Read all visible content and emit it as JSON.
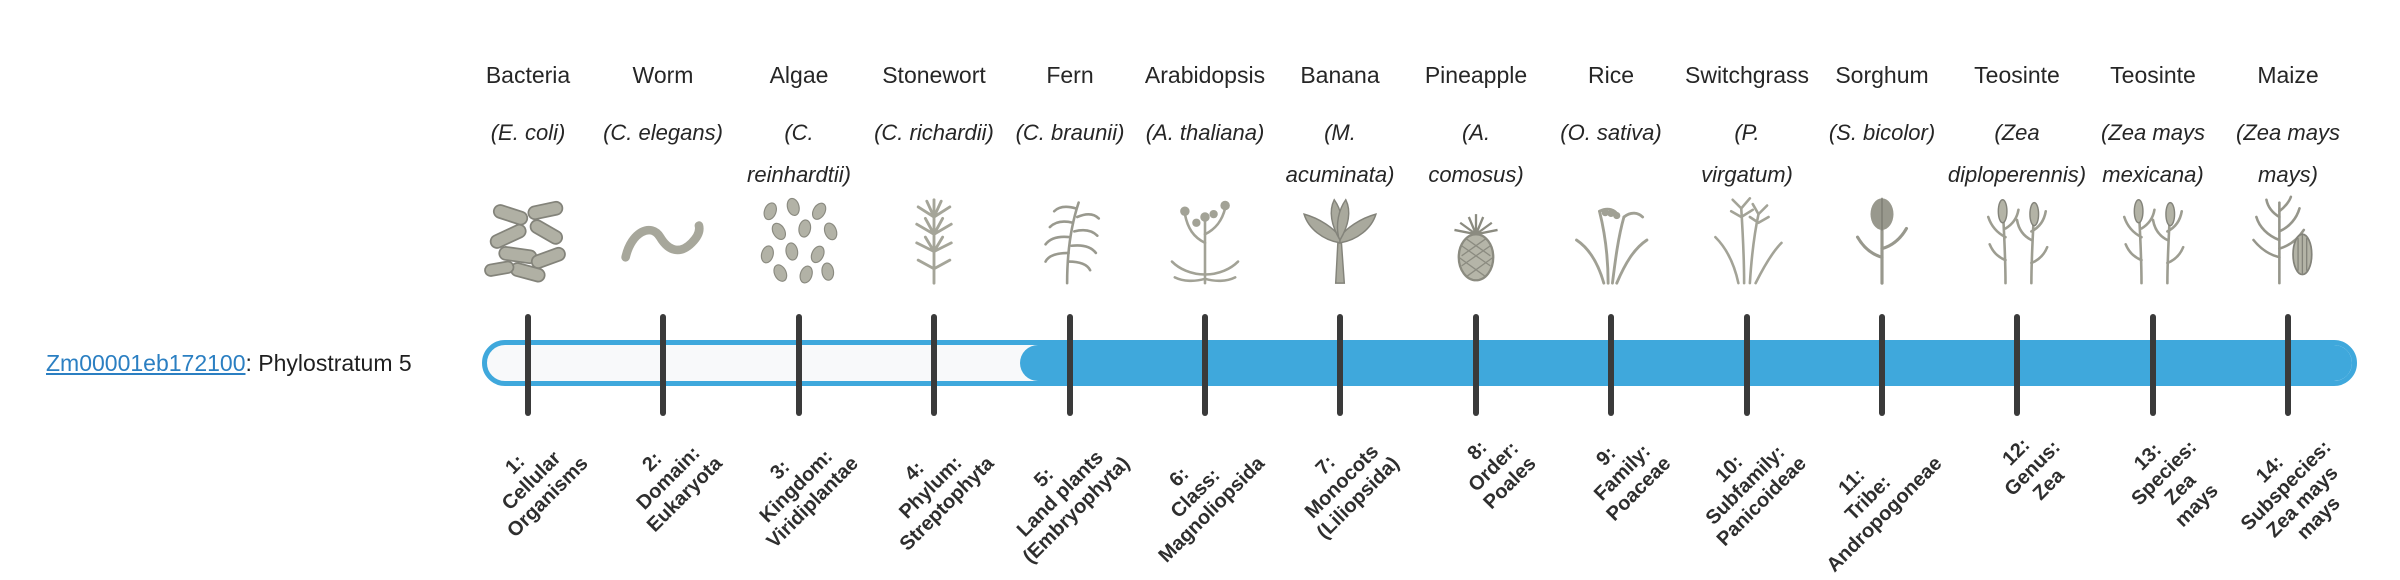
{
  "gene": {
    "id": "Zm00001eb172100",
    "suffix": ": Phylostratum 5",
    "phylostratum": 5
  },
  "colors": {
    "bar": "#3FA8DC",
    "bar_track": "#F8F9FA",
    "tick": "#3A3A3A",
    "link": "#2B7FC2",
    "text": "#262626"
  },
  "taxa": [
    {
      "common": "Bacteria",
      "sci": "(E. coli)",
      "icon": "bacteria-icon",
      "stratum_lines": [
        "1:",
        "Cellular",
        "Organisms"
      ]
    },
    {
      "common": "Worm",
      "sci": "(C. elegans)",
      "icon": "worm-icon",
      "stratum_lines": [
        "2:",
        "Domain:",
        "Eukaryota"
      ]
    },
    {
      "common": "Algae",
      "sci": "(C.\nreinhardtii)",
      "icon": "algae-icon",
      "stratum_lines": [
        "3:",
        "Kingdom:",
        "Viridiplantae"
      ]
    },
    {
      "common": "Stonewort",
      "sci": "(C. richardii)",
      "icon": "stonewort-icon",
      "stratum_lines": [
        "4:",
        "Phylum:",
        "Streptophyta"
      ]
    },
    {
      "common": "Fern",
      "sci": "(C. braunii)",
      "icon": "fern-icon",
      "stratum_lines": [
        "5:",
        "Land plants",
        "(Embryophyta)"
      ]
    },
    {
      "common": "Arabidopsis",
      "sci": "(A. thaliana)",
      "icon": "arabidopsis-icon",
      "stratum_lines": [
        "6:",
        "Class:",
        "Magnoliopsida"
      ]
    },
    {
      "common": "Banana",
      "sci": "(M.\nacuminata)",
      "icon": "banana-icon",
      "stratum_lines": [
        "7:",
        "Monocots",
        "(Liliopsida)"
      ]
    },
    {
      "common": "Pineapple",
      "sci": "(A.\ncomosus)",
      "icon": "pineapple-icon",
      "stratum_lines": [
        "8:",
        "Order:",
        "Poales"
      ]
    },
    {
      "common": "Rice",
      "sci": "(O. sativa)",
      "icon": "rice-icon",
      "stratum_lines": [
        "9:",
        "Family:",
        "Poaceae"
      ]
    },
    {
      "common": "Switchgrass",
      "sci": "(P.\nvirgatum)",
      "icon": "switchgrass-icon",
      "stratum_lines": [
        "10:",
        "Subfamily:",
        "Panicoideae"
      ]
    },
    {
      "common": "Sorghum",
      "sci": "(S. bicolor)",
      "icon": "sorghum-icon",
      "stratum_lines": [
        "11:",
        "Tribe:",
        "Andropogoneae"
      ]
    },
    {
      "common": "Teosinte",
      "sci": "(Zea\ndiploperennis)",
      "icon": "teosinte-icon",
      "stratum_lines": [
        "12:",
        "Genus:",
        "Zea"
      ]
    },
    {
      "common": "Teosinte",
      "sci": "(Zea mays\nmexicana)",
      "icon": "teosinte-icon",
      "stratum_lines": [
        "13:",
        "Species:",
        "Zea",
        "mays"
      ]
    },
    {
      "common": "Maize",
      "sci": "(Zea mays\nmays)",
      "icon": "maize-icon",
      "stratum_lines": [
        "14:",
        "Subspecies:",
        "Zea mays",
        "mays"
      ]
    }
  ]
}
